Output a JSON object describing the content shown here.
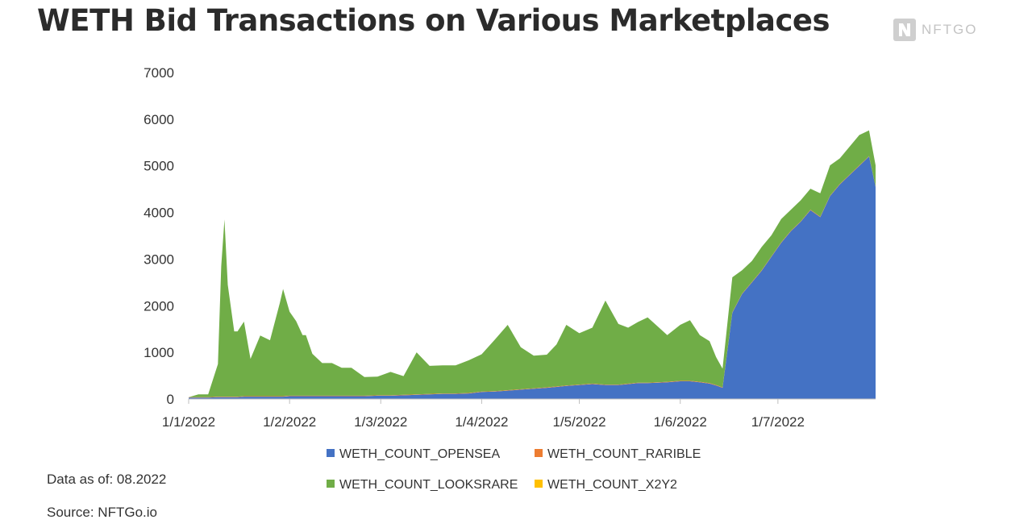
{
  "header": {
    "title": "WETH Bid Transactions on Various Marketplaces",
    "logo_text": "NFTGO"
  },
  "footer": {
    "data_as_of": "Data as of: 08.2022",
    "source": "Source: NFTGo.io"
  },
  "colors": {
    "opensea": "#4472C4",
    "rarible": "#ED7D31",
    "looksrare": "#70AD47",
    "x2y2": "#FFC000"
  },
  "chart_data": {
    "type": "area",
    "stacked": true,
    "title": "",
    "xlabel": "",
    "ylabel": "",
    "ylim": [
      0,
      7000
    ],
    "yticks": [
      0,
      1000,
      2000,
      3000,
      4000,
      5000,
      6000,
      7000
    ],
    "xtick_labels": [
      "1/1/2022",
      "1/2/2022",
      "1/3/2022",
      "1/4/2022",
      "1/5/2022",
      "1/6/2022",
      "1/7/2022"
    ],
    "x": [
      "2022-01-01",
      "2022-01-04",
      "2022-01-07",
      "2022-01-10",
      "2022-01-11",
      "2022-01-12",
      "2022-01-13",
      "2022-01-15",
      "2022-01-16",
      "2022-01-18",
      "2022-01-20",
      "2022-01-23",
      "2022-01-26",
      "2022-01-29",
      "2022-01-30",
      "2022-02-01",
      "2022-02-03",
      "2022-02-05",
      "2022-02-06",
      "2022-02-08",
      "2022-02-11",
      "2022-02-14",
      "2022-02-17",
      "2022-02-20",
      "2022-02-24",
      "2022-02-28",
      "2022-03-04",
      "2022-03-08",
      "2022-03-12",
      "2022-03-16",
      "2022-03-20",
      "2022-03-24",
      "2022-03-28",
      "2022-04-01",
      "2022-04-05",
      "2022-04-09",
      "2022-04-13",
      "2022-04-17",
      "2022-04-21",
      "2022-04-24",
      "2022-04-27",
      "2022-05-01",
      "2022-05-05",
      "2022-05-09",
      "2022-05-13",
      "2022-05-16",
      "2022-05-19",
      "2022-05-22",
      "2022-05-25",
      "2022-05-28",
      "2022-06-01",
      "2022-06-04",
      "2022-06-07",
      "2022-06-10",
      "2022-06-12",
      "2022-06-14",
      "2022-06-17",
      "2022-06-20",
      "2022-06-23",
      "2022-06-26",
      "2022-06-29",
      "2022-07-02",
      "2022-07-05",
      "2022-07-08",
      "2022-07-11",
      "2022-07-14",
      "2022-07-17",
      "2022-07-20",
      "2022-07-23",
      "2022-07-26",
      "2022-07-29",
      "2022-07-31"
    ],
    "series": [
      {
        "name": "WETH_COUNT_OPENSEA",
        "values": [
          30,
          30,
          30,
          40,
          40,
          40,
          40,
          40,
          40,
          50,
          50,
          50,
          50,
          50,
          50,
          60,
          60,
          60,
          60,
          60,
          60,
          60,
          60,
          60,
          60,
          70,
          70,
          80,
          90,
          100,
          110,
          110,
          120,
          150,
          160,
          180,
          200,
          220,
          240,
          260,
          280,
          300,
          320,
          300,
          300,
          320,
          340,
          340,
          350,
          360,
          380,
          380,
          360,
          330,
          290,
          240,
          1850,
          2250,
          2500,
          2750,
          3050,
          3350,
          3600,
          3800,
          4050,
          3900,
          4350,
          4600,
          4800,
          5000,
          5200,
          4550
        ]
      },
      {
        "name": "WETH_COUNT_RARIBLE",
        "values": [
          10,
          10,
          10,
          10,
          10,
          10,
          10,
          10,
          10,
          10,
          10,
          10,
          10,
          10,
          10,
          10,
          10,
          10,
          10,
          10,
          10,
          10,
          10,
          10,
          10,
          10,
          10,
          10,
          10,
          10,
          10,
          10,
          10,
          10,
          10,
          10,
          10,
          10,
          10,
          10,
          10,
          10,
          10,
          10,
          10,
          10,
          10,
          10,
          10,
          10,
          10,
          10,
          10,
          10,
          10,
          10,
          10,
          10,
          10,
          10,
          10,
          10,
          10,
          10,
          10,
          10,
          10,
          10,
          10,
          10,
          10,
          10
        ]
      },
      {
        "name": "WETH_COUNT_LOOKSRARE",
        "values": [
          0,
          60,
          60,
          700,
          2800,
          3800,
          2400,
          1400,
          1400,
          1600,
          800,
          1300,
          1200,
          2000,
          2300,
          1800,
          1600,
          1300,
          1300,
          900,
          700,
          700,
          600,
          600,
          400,
          400,
          500,
          400,
          900,
          600,
          600,
          600,
          700,
          800,
          1100,
          1400,
          900,
          700,
          700,
          900,
          1300,
          1100,
          1200,
          1800,
          1300,
          1200,
          1300,
          1400,
          1200,
          1000,
          1200,
          1300,
          1000,
          900,
          600,
          400,
          750,
          500,
          450,
          500,
          450,
          500,
          450,
          450,
          450,
          500,
          650,
          550,
          600,
          650,
          550,
          450
        ]
      },
      {
        "name": "WETH_COUNT_X2Y2",
        "values": [
          0,
          0,
          0,
          0,
          0,
          0,
          0,
          0,
          0,
          0,
          0,
          0,
          0,
          0,
          0,
          0,
          0,
          0,
          0,
          0,
          0,
          0,
          0,
          0,
          0,
          0,
          0,
          0,
          0,
          0,
          0,
          0,
          0,
          0,
          0,
          0,
          0,
          0,
          0,
          0,
          0,
          0,
          0,
          0,
          0,
          0,
          0,
          0,
          0,
          0,
          0,
          0,
          0,
          0,
          0,
          0,
          0,
          0,
          0,
          0,
          0,
          0,
          0,
          0,
          0,
          0,
          0,
          0,
          0,
          0,
          0,
          0
        ]
      }
    ],
    "legend": {
      "placement": "bottom",
      "entries": [
        "WETH_COUNT_OPENSEA",
        "WETH_COUNT_RARIBLE",
        "WETH_COUNT_LOOKSRARE",
        "WETH_COUNT_X2Y2"
      ]
    },
    "grid": false
  }
}
